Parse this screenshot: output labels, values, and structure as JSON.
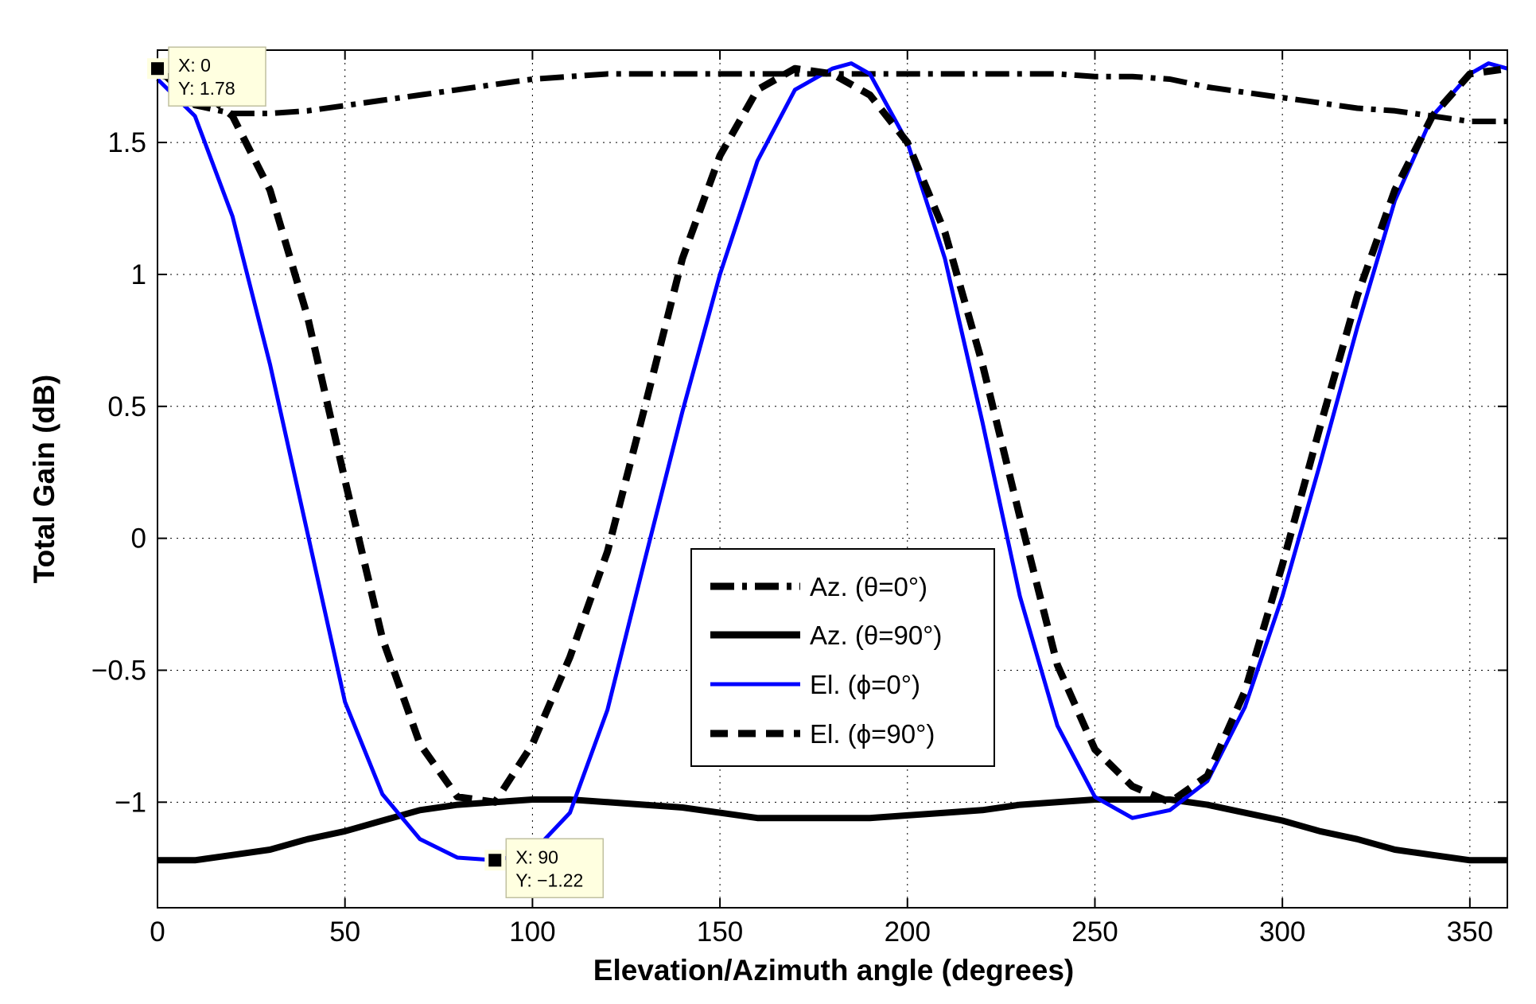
{
  "chart_data": {
    "type": "line",
    "title": "",
    "xlabel": "Elevation/Azimuth angle (degrees)",
    "ylabel": "Total Gain (dB)",
    "xlim": [
      0,
      360
    ],
    "ylim": [
      -1.4,
      1.85
    ],
    "grid": true,
    "xticks": [
      0,
      50,
      100,
      150,
      200,
      250,
      300,
      350
    ],
    "xtick_labels": [
      "0",
      "50",
      "100",
      "150",
      "200",
      "250",
      "300",
      "350"
    ],
    "yticks": [
      -1,
      -0.5,
      0,
      0.5,
      1,
      1.5
    ],
    "ytick_labels": [
      "−1",
      "−0.5",
      "0",
      "0.5",
      "1",
      "1.5"
    ],
    "legend_position": "center",
    "series": [
      {
        "name": "Az. (θ=0°)",
        "color": "#000000",
        "style": "dashdot",
        "x": [
          0,
          10,
          20,
          30,
          40,
          50,
          60,
          70,
          80,
          90,
          100,
          110,
          120,
          130,
          140,
          150,
          160,
          170,
          180,
          190,
          200,
          210,
          220,
          230,
          240,
          250,
          260,
          270,
          280,
          290,
          300,
          310,
          320,
          330,
          340,
          350,
          360
        ],
        "y": [
          1.78,
          1.64,
          1.61,
          1.61,
          1.62,
          1.64,
          1.66,
          1.68,
          1.7,
          1.72,
          1.74,
          1.75,
          1.76,
          1.76,
          1.76,
          1.76,
          1.76,
          1.76,
          1.76,
          1.76,
          1.76,
          1.76,
          1.76,
          1.76,
          1.76,
          1.75,
          1.75,
          1.74,
          1.71,
          1.69,
          1.67,
          1.65,
          1.63,
          1.62,
          1.6,
          1.58,
          1.58
        ]
      },
      {
        "name": "Az. (θ=90°)",
        "color": "#000000",
        "style": "solid-thick",
        "x": [
          0,
          10,
          20,
          30,
          40,
          50,
          60,
          70,
          80,
          90,
          100,
          110,
          120,
          130,
          140,
          150,
          160,
          170,
          180,
          190,
          200,
          210,
          220,
          230,
          240,
          250,
          260,
          270,
          280,
          290,
          300,
          310,
          320,
          330,
          340,
          350,
          360
        ],
        "y": [
          -1.22,
          -1.22,
          -1.2,
          -1.18,
          -1.14,
          -1.11,
          -1.07,
          -1.03,
          -1.01,
          -1.0,
          -0.99,
          -0.99,
          -1.0,
          -1.01,
          -1.02,
          -1.04,
          -1.06,
          -1.06,
          -1.06,
          -1.06,
          -1.05,
          -1.04,
          -1.03,
          -1.01,
          -1.0,
          -0.99,
          -0.99,
          -0.99,
          -1.01,
          -1.04,
          -1.07,
          -1.11,
          -1.14,
          -1.18,
          -1.2,
          -1.22,
          -1.22
        ]
      },
      {
        "name": "El. (ϕ=0°)",
        "color": "#0000ff",
        "style": "solid",
        "x": [
          0,
          10,
          20,
          30,
          40,
          50,
          60,
          70,
          80,
          90,
          100,
          110,
          120,
          130,
          140,
          150,
          160,
          170,
          180,
          185,
          190,
          200,
          210,
          220,
          230,
          240,
          250,
          260,
          270,
          280,
          290,
          300,
          310,
          320,
          330,
          340,
          350,
          355,
          360
        ],
        "y": [
          1.74,
          1.6,
          1.22,
          0.66,
          0.02,
          -0.62,
          -0.97,
          -1.14,
          -1.21,
          -1.22,
          -1.19,
          -1.04,
          -0.65,
          -0.08,
          0.48,
          1.0,
          1.43,
          1.7,
          1.78,
          1.8,
          1.76,
          1.5,
          1.06,
          0.44,
          -0.22,
          -0.71,
          -0.98,
          -1.06,
          -1.03,
          -0.92,
          -0.64,
          -0.22,
          0.28,
          0.8,
          1.28,
          1.6,
          1.76,
          1.8,
          1.78
        ]
      },
      {
        "name": "El. (ϕ=90°)",
        "color": "#000000",
        "style": "dashed",
        "x": [
          0,
          10,
          20,
          30,
          40,
          50,
          60,
          70,
          80,
          90,
          100,
          110,
          120,
          130,
          140,
          150,
          160,
          170,
          180,
          190,
          200,
          210,
          220,
          230,
          240,
          250,
          260,
          270,
          280,
          290,
          300,
          310,
          320,
          330,
          340,
          350,
          360
        ],
        "y": [
          1.76,
          1.72,
          1.6,
          1.32,
          0.84,
          0.22,
          -0.38,
          -0.78,
          -0.98,
          -1.0,
          -0.78,
          -0.45,
          -0.05,
          0.5,
          1.06,
          1.45,
          1.7,
          1.78,
          1.76,
          1.68,
          1.5,
          1.16,
          0.66,
          0.08,
          -0.48,
          -0.8,
          -0.94,
          -1.0,
          -0.9,
          -0.58,
          -0.1,
          0.42,
          0.92,
          1.32,
          1.6,
          1.76,
          1.78
        ]
      }
    ],
    "annotations": [
      {
        "x": 0,
        "y": 1.78,
        "x_text": "X: 0",
        "y_text": "Y: 1.78"
      },
      {
        "x": 90,
        "y": -1.22,
        "x_text": "X: 90",
        "y_text": "Y: −1.22"
      }
    ]
  }
}
